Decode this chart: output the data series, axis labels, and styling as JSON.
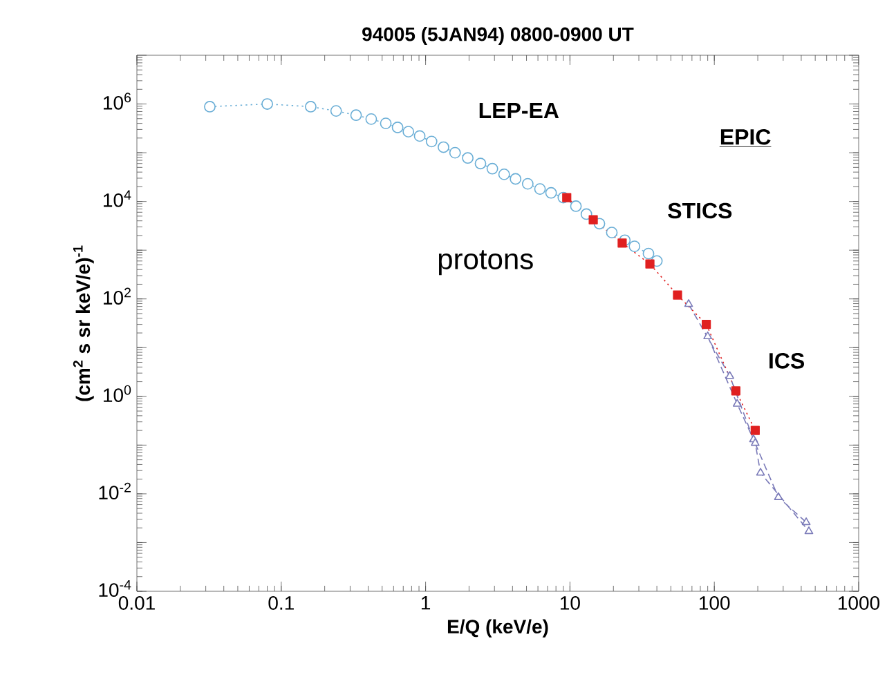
{
  "chart_data": {
    "type": "line",
    "title": "94005 (5JAN94) 0800-0900 UT",
    "xlabel": "E/Q (keV/e)",
    "ylabel": "(cm$^{2}$ s sr keV/e)$^{-1}$",
    "log": "xy",
    "grid": false,
    "legend": false,
    "xlim": [
      0.01,
      1000
    ],
    "xticks": [
      0.01,
      0.1,
      1,
      10,
      100,
      1000
    ],
    "ylim": [
      0.0001,
      10000000.0
    ],
    "yticks": [
      {
        "value": 0.0001,
        "label": "10$^{-4}$"
      },
      {
        "value": 0.001,
        "label": null
      },
      {
        "value": 0.01,
        "label": "10$^{-2}$"
      },
      {
        "value": 0.1,
        "label": null
      },
      {
        "value": 1,
        "label": "10$^{0}$"
      },
      {
        "value": 10,
        "label": null
      },
      {
        "value": 100,
        "label": "10$^{2}$"
      },
      {
        "value": 1000,
        "label": null
      },
      {
        "value": 10000.0,
        "label": "10$^{4}$"
      },
      {
        "value": 100000.0,
        "label": null
      },
      {
        "value": 1000000.0,
        "label": "10$^{6}$"
      },
      {
        "value": 10000000.0,
        "label": null
      }
    ],
    "annotations": [
      "EPIC",
      "STICS",
      "protons"
    ],
    "series": [
      {
        "name": "LEP-EA",
        "color": "#6aaed6",
        "marker": "circle",
        "line_style": "dotted",
        "x": [
          0.032,
          0.08,
          0.16,
          0.24,
          0.33,
          0.42,
          0.53,
          0.64,
          0.76,
          0.91,
          1.1,
          1.33,
          1.6,
          1.96,
          2.4,
          2.9,
          3.5,
          4.2,
          5.1,
          6.2,
          7.4,
          9,
          11,
          13,
          16,
          19.5,
          24,
          28,
          35,
          40
        ],
        "values": [
          880000.0,
          1000000.0,
          880000.0,
          720000.0,
          590000.0,
          490000.0,
          400000.0,
          330000.0,
          270000.0,
          220000.0,
          170000.0,
          130000.0,
          100000.0,
          78000.0,
          60000.0,
          47000.0,
          36000.0,
          29000.0,
          23000.0,
          18000.0,
          15000.0,
          12000.0,
          8000.0,
          5500.0,
          3500.0,
          2300.0,
          1600.0,
          1200.0,
          850.0,
          600.0
        ]
      },
      {
        "color": "#e02020",
        "marker": "square",
        "line_style": "dotted",
        "x": [
          9.5,
          14.5,
          23,
          35.8,
          55.6,
          88,
          141,
          192
        ],
        "values": [
          12000.0,
          4200.0,
          1400.0,
          520,
          120,
          30,
          1.3,
          0.2
        ]
      },
      {
        "name": "ICS",
        "color": "#7a7ab8",
        "marker": "triangle",
        "line_style": "dashed",
        "x": [
          66.4,
          128,
          187,
          278,
          433
        ],
        "values": [
          78,
          2.6,
          0.13,
          0.0085,
          0.0026
        ]
      },
      {
        "color": "#7a7ab8",
        "marker": "triangle",
        "line_style": "dashed",
        "x": [
          90,
          144,
          192,
          209,
          452
        ],
        "values": [
          17,
          0.7,
          0.11,
          0.027,
          0.0017
        ]
      }
    ]
  }
}
